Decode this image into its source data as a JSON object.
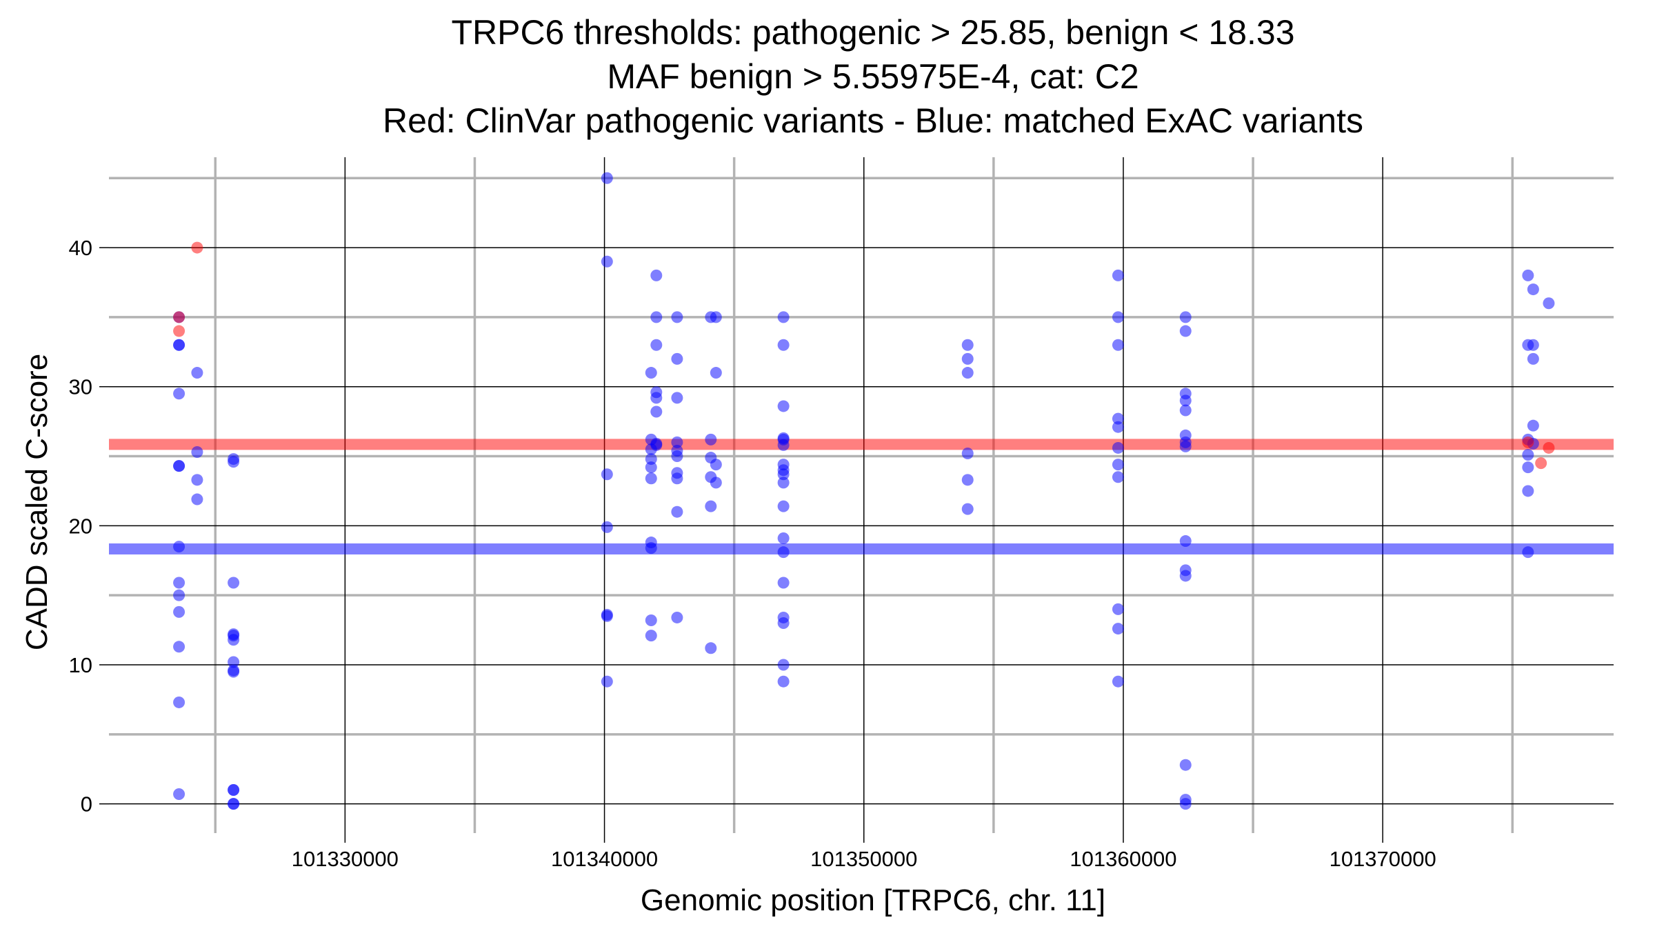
{
  "chart_data": {
    "type": "scatter",
    "title_lines": [
      "TRPC6 thresholds: pathogenic > 25.85, benign < 18.33",
      "MAF benign > 5.55975E-4, cat: C2",
      "Red: ClinVar pathogenic variants - Blue: matched ExAC variants"
    ],
    "xlabel": "Genomic position [TRPC6, chr. 11]",
    "ylabel": "CADD scaled C-score",
    "xlim": [
      101320900,
      101378900
    ],
    "ylim": [
      -2.1,
      46.5
    ],
    "x_major_ticks": [
      101330000,
      101340000,
      101350000,
      101360000,
      101370000
    ],
    "x_tick_labels": [
      "101330000",
      "101340000",
      "101350000",
      "101360000",
      "101370000"
    ],
    "x_minor_gridlines": [
      101325000,
      101335000,
      101345000,
      101355000,
      101365000,
      101375000
    ],
    "y_major_ticks": [
      0,
      10,
      20,
      30,
      40
    ],
    "y_tick_labels": [
      "0",
      "10",
      "20",
      "30",
      "40"
    ],
    "y_minor_gridlines": [
      5,
      15,
      25,
      35,
      45
    ],
    "grid": true,
    "thresholds": [
      {
        "name": "pathogenic",
        "value": 25.85,
        "color": "#ff0000"
      },
      {
        "name": "benign",
        "value": 18.33,
        "color": "#0000ff"
      }
    ],
    "series": [
      {
        "name": "ClinVar pathogenic variants",
        "color": "#ff0000",
        "points": [
          [
            101323600,
            35.0
          ],
          [
            101323600,
            34.0
          ],
          [
            101324300,
            40.0
          ],
          [
            101375600,
            26.0
          ],
          [
            101376100,
            24.5
          ],
          [
            101376400,
            25.6
          ]
        ]
      },
      {
        "name": "matched ExAC variants",
        "color": "#0000ff",
        "points": [
          [
            101323600,
            35.0
          ],
          [
            101323600,
            33.0
          ],
          [
            101323600,
            33.0
          ],
          [
            101323600,
            29.5
          ],
          [
            101323600,
            24.3
          ],
          [
            101323600,
            24.3
          ],
          [
            101323600,
            18.5
          ],
          [
            101323600,
            15.9
          ],
          [
            101323600,
            15.0
          ],
          [
            101323600,
            13.8
          ],
          [
            101323600,
            11.3
          ],
          [
            101323600,
            7.3
          ],
          [
            101323600,
            0.7
          ],
          [
            101324300,
            31.0
          ],
          [
            101324300,
            25.3
          ],
          [
            101324300,
            23.3
          ],
          [
            101324300,
            21.9
          ],
          [
            101325700,
            24.8
          ],
          [
            101325700,
            24.6
          ],
          [
            101325700,
            15.9
          ],
          [
            101325700,
            12.2
          ],
          [
            101325700,
            12.1
          ],
          [
            101325700,
            11.8
          ],
          [
            101325700,
            10.2
          ],
          [
            101325700,
            9.6
          ],
          [
            101325700,
            9.5
          ],
          [
            101325700,
            1.0
          ],
          [
            101325700,
            1.0
          ],
          [
            101325700,
            0.0
          ],
          [
            101325700,
            0.0
          ],
          [
            101340100,
            45.0
          ],
          [
            101340100,
            39.0
          ],
          [
            101340100,
            23.7
          ],
          [
            101340100,
            19.9
          ],
          [
            101340100,
            13.6
          ],
          [
            101340100,
            13.5
          ],
          [
            101340100,
            8.8
          ],
          [
            101341800,
            31.0
          ],
          [
            101341800,
            26.2
          ],
          [
            101341800,
            25.5
          ],
          [
            101341800,
            24.8
          ],
          [
            101341800,
            24.2
          ],
          [
            101341800,
            23.4
          ],
          [
            101341800,
            18.8
          ],
          [
            101341800,
            18.4
          ],
          [
            101341800,
            13.2
          ],
          [
            101341800,
            12.1
          ],
          [
            101342000,
            38.0
          ],
          [
            101342000,
            35.0
          ],
          [
            101342000,
            33.0
          ],
          [
            101342000,
            29.6
          ],
          [
            101342000,
            29.2
          ],
          [
            101342000,
            28.2
          ],
          [
            101342000,
            25.9
          ],
          [
            101342000,
            25.8
          ],
          [
            101342800,
            35.0
          ],
          [
            101342800,
            32.0
          ],
          [
            101342800,
            29.2
          ],
          [
            101342800,
            26.0
          ],
          [
            101342800,
            25.4
          ],
          [
            101342800,
            25.0
          ],
          [
            101342800,
            23.8
          ],
          [
            101342800,
            23.4
          ],
          [
            101342800,
            21.0
          ],
          [
            101342800,
            13.4
          ],
          [
            101344100,
            35.0
          ],
          [
            101344100,
            26.2
          ],
          [
            101344100,
            24.9
          ],
          [
            101344100,
            23.5
          ],
          [
            101344100,
            21.4
          ],
          [
            101344100,
            11.2
          ],
          [
            101344300,
            35.0
          ],
          [
            101344300,
            31.0
          ],
          [
            101344300,
            24.4
          ],
          [
            101344300,
            23.1
          ],
          [
            101346900,
            35.0
          ],
          [
            101346900,
            33.0
          ],
          [
            101346900,
            28.6
          ],
          [
            101346900,
            26.3
          ],
          [
            101346900,
            26.2
          ],
          [
            101346900,
            25.8
          ],
          [
            101346900,
            24.4
          ],
          [
            101346900,
            24.0
          ],
          [
            101346900,
            23.7
          ],
          [
            101346900,
            23.1
          ],
          [
            101346900,
            21.4
          ],
          [
            101346900,
            19.1
          ],
          [
            101346900,
            18.1
          ],
          [
            101346900,
            15.9
          ],
          [
            101346900,
            13.4
          ],
          [
            101346900,
            13.0
          ],
          [
            101346900,
            10.0
          ],
          [
            101346900,
            8.8
          ],
          [
            101354000,
            33.0
          ],
          [
            101354000,
            32.0
          ],
          [
            101354000,
            31.0
          ],
          [
            101354000,
            25.2
          ],
          [
            101354000,
            23.3
          ],
          [
            101354000,
            21.2
          ],
          [
            101359800,
            38.0
          ],
          [
            101359800,
            35.0
          ],
          [
            101359800,
            33.0
          ],
          [
            101359800,
            27.7
          ],
          [
            101359800,
            27.1
          ],
          [
            101359800,
            25.6
          ],
          [
            101359800,
            24.4
          ],
          [
            101359800,
            23.5
          ],
          [
            101359800,
            14.0
          ],
          [
            101359800,
            12.6
          ],
          [
            101359800,
            8.8
          ],
          [
            101362400,
            35.0
          ],
          [
            101362400,
            34.0
          ],
          [
            101362400,
            29.5
          ],
          [
            101362400,
            29.0
          ],
          [
            101362400,
            28.3
          ],
          [
            101362400,
            26.5
          ],
          [
            101362400,
            26.0
          ],
          [
            101362400,
            25.7
          ],
          [
            101362400,
            18.9
          ],
          [
            101362400,
            16.8
          ],
          [
            101362400,
            16.4
          ],
          [
            101362400,
            2.8
          ],
          [
            101362400,
            0.3
          ],
          [
            101362400,
            0.0
          ],
          [
            101375600,
            38.0
          ],
          [
            101375600,
            33.0
          ],
          [
            101375600,
            26.2
          ],
          [
            101375600,
            25.1
          ],
          [
            101375600,
            24.2
          ],
          [
            101375600,
            22.5
          ],
          [
            101375600,
            18.1
          ],
          [
            101375800,
            37.0
          ],
          [
            101375800,
            33.0
          ],
          [
            101375800,
            32.0
          ],
          [
            101375800,
            27.2
          ],
          [
            101375800,
            25.9
          ],
          [
            101376400,
            36.0
          ]
        ]
      }
    ]
  }
}
